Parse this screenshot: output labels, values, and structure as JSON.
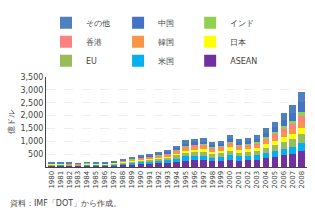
{
  "chart_data": {
    "type": "bar",
    "stacked": true,
    "categories": [
      "1980",
      "1981",
      "1982",
      "1983",
      "1984",
      "1985",
      "1986",
      "1987",
      "1988",
      "1989",
      "1990",
      "1991",
      "1992",
      "1993",
      "1994",
      "1995",
      "1996",
      "1997",
      "1998",
      "1999",
      "2000",
      "2001",
      "2002",
      "2003",
      "2004",
      "2005",
      "2006",
      "2007",
      "2008"
    ],
    "series": [
      {
        "name": "ASEAN",
        "color": "#7030A0",
        "values": [
          45,
          48,
          42,
          40,
          50,
          46,
          50,
          62,
          80,
          100,
          118,
          130,
          140,
          155,
          190,
          240,
          255,
          260,
          218,
          235,
          280,
          245,
          255,
          280,
          340,
          390,
          465,
          525,
          640
        ]
      },
      {
        "name": "米国",
        "color": "#00B0F0",
        "values": [
          32,
          34,
          32,
          30,
          38,
          35,
          37,
          48,
          60,
          72,
          82,
          92,
          102,
          108,
          140,
          172,
          178,
          172,
          150,
          155,
          188,
          165,
          162,
          172,
          198,
          226,
          248,
          268,
          312
        ]
      },
      {
        "name": "EU",
        "color": "#9BBB59",
        "values": [
          22,
          24,
          22,
          20,
          24,
          22,
          24,
          30,
          42,
          52,
          60,
          70,
          82,
          92,
          118,
          140,
          150,
          155,
          140,
          140,
          166,
          150,
          155,
          166,
          198,
          226,
          262,
          290,
          332
        ]
      },
      {
        "name": "日本",
        "color": "#FFFF00",
        "values": [
          18,
          19,
          18,
          16,
          20,
          18,
          18,
          23,
          32,
          40,
          48,
          54,
          62,
          68,
          90,
          108,
          114,
          114,
          100,
          102,
          125,
          108,
          112,
          120,
          148,
          165,
          188,
          210,
          245
        ]
      },
      {
        "name": "韓国",
        "color": "#F79646",
        "values": [
          6,
          6,
          6,
          5,
          7,
          6,
          7,
          9,
          14,
          18,
          23,
          27,
          32,
          36,
          50,
          65,
          70,
          73,
          65,
          70,
          88,
          77,
          82,
          90,
          114,
          130,
          158,
          182,
          222
        ]
      },
      {
        "name": "香港",
        "color": "#FF8080",
        "values": [
          12,
          13,
          11,
          10,
          13,
          11,
          12,
          16,
          23,
          28,
          34,
          40,
          45,
          50,
          68,
          84,
          90,
          90,
          82,
          85,
          102,
          88,
          93,
          102,
          125,
          148,
          175,
          198,
          232
        ]
      },
      {
        "name": "インド",
        "color": "#92D050",
        "values": [
          4,
          4,
          3,
          3,
          4,
          3,
          4,
          5,
          7,
          9,
          11,
          14,
          16,
          18,
          25,
          32,
          34,
          36,
          32,
          34,
          41,
          36,
          40,
          46,
          59,
          70,
          88,
          108,
          142
        ]
      },
      {
        "name": "中国",
        "color": "#4472C4",
        "values": [
          5,
          5,
          5,
          4,
          6,
          5,
          6,
          8,
          12,
          16,
          21,
          25,
          32,
          39,
          55,
          70,
          77,
          82,
          74,
          82,
          105,
          93,
          102,
          119,
          159,
          199,
          255,
          318,
          420
        ]
      },
      {
        "name": "その他",
        "color": "#4F81BD",
        "values": [
          24,
          26,
          23,
          21,
          26,
          23,
          25,
          29,
          36,
          46,
          55,
          63,
          71,
          78,
          100,
          122,
          128,
          130,
          114,
          120,
          148,
          128,
          134,
          148,
          182,
          210,
          255,
          296,
          358
        ]
      }
    ],
    "ylabel": "億ドル",
    "annotations": [
      "資料：IMF「DOT」から作成。"
    ],
    "ylim": [
      0,
      3500
    ],
    "yticks": [
      500,
      {
        "value": 1000,
        "label": "1,000"
      },
      {
        "value": 1500,
        "label": "1,500"
      },
      {
        "value": 2000,
        "label": "2,000"
      },
      {
        "value": 2500,
        "label": "2,500"
      },
      {
        "value": 3000,
        "label": "3,000"
      },
      {
        "value": 3500,
        "label": "3,500"
      }
    ],
    "grid": true,
    "legend": "upper left"
  }
}
